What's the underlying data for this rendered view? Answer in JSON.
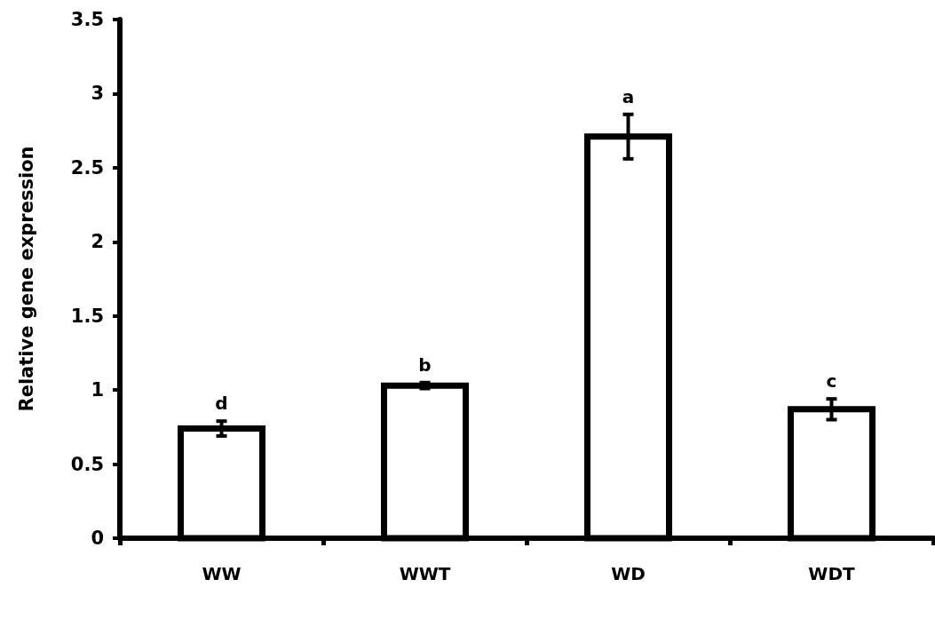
{
  "chart_data": {
    "type": "bar",
    "ylabel": "Relative gene expression",
    "categories": [
      "WW",
      "WWT",
      "WD",
      "WDT"
    ],
    "values": [
      0.74,
      1.03,
      2.71,
      0.87
    ],
    "errors": [
      0.05,
      0.02,
      0.15,
      0.07
    ],
    "color": "#000000",
    "ylim": [
      0,
      3.5
    ],
    "yticks": [
      0,
      0.5,
      1,
      1.5,
      2,
      2.5,
      3,
      3.5
    ],
    "grid": false,
    "annotations": [
      "d",
      "b",
      "a",
      "c"
    ]
  }
}
